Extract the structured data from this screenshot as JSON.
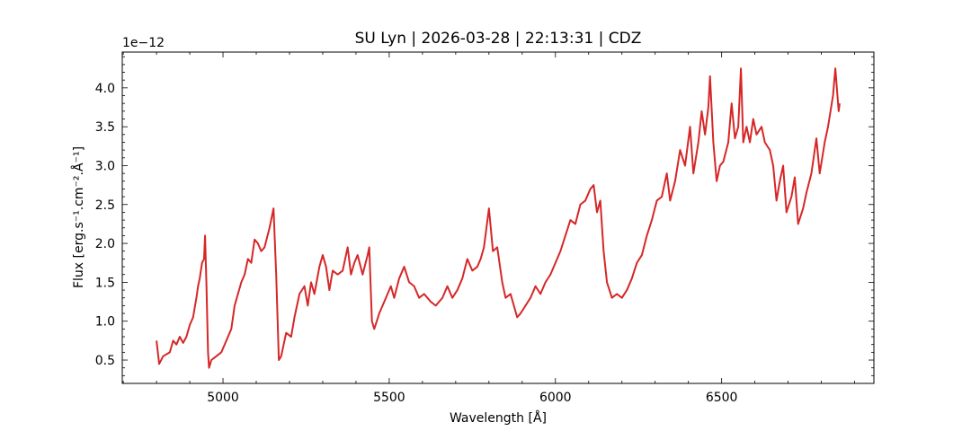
{
  "chart_data": {
    "type": "line",
    "title": "SU Lyn | 2026-03-28 | 22:13:31 | CDZ",
    "x_label": "Wavelength [Å]",
    "y_label": "Flux [erg.s⁻¹.cm⁻².Å⁻¹]",
    "y_offset_label": "1e−12",
    "xlim": [
      4697,
      6958
    ],
    "ylim": [
      0.2,
      4.46
    ],
    "xticks": [
      5000,
      5500,
      6000,
      6500
    ],
    "yticks": [
      0.5,
      {
        "value": 1.0,
        "label": "1.0"
      },
      1.5,
      {
        "value": 2.0,
        "label": "2.0"
      },
      2.5,
      {
        "value": 3.0,
        "label": "3.0"
      },
      3.5,
      {
        "value": 4.0,
        "label": "4.0"
      }
    ],
    "xminor": [
      4700,
      4800,
      4900,
      5100,
      5200,
      5300,
      5400,
      5600,
      5700,
      5800,
      5900,
      6100,
      6200,
      6300,
      6400,
      6600,
      6700,
      6800,
      6900
    ],
    "yminor": [
      0.3,
      0.4,
      0.6,
      0.7,
      0.8,
      0.9,
      1.1,
      1.2,
      1.3,
      1.4,
      1.6,
      1.7,
      1.8,
      1.9,
      2.1,
      2.2,
      2.3,
      2.4,
      2.6,
      2.7,
      2.8,
      2.9,
      3.1,
      3.2,
      3.3,
      3.4,
      3.6,
      3.7,
      3.8,
      3.9,
      4.1,
      4.2,
      4.3,
      4.4
    ],
    "grid": false,
    "series": [
      {
        "color": "#d62728",
        "x": [
          4800,
          4808,
          4820,
          4840,
          4850,
          4860,
          4870,
          4880,
          4890,
          4900,
          4910,
          4920,
          4925,
          4930,
          4937,
          4943,
          4946,
          4950,
          4955,
          4958,
          4965,
          4980,
          4995,
          5010,
          5025,
          5035,
          5045,
          5055,
          5065,
          5075,
          5085,
          5095,
          5105,
          5115,
          5125,
          5140,
          5152,
          5160,
          5168,
          5175,
          5190,
          5205,
          5215,
          5230,
          5245,
          5255,
          5265,
          5275,
          5290,
          5300,
          5310,
          5320,
          5330,
          5345,
          5360,
          5375,
          5385,
          5395,
          5405,
          5420,
          5435,
          5440,
          5448,
          5455,
          5470,
          5490,
          5505,
          5515,
          5530,
          5545,
          5560,
          5575,
          5590,
          5605,
          5625,
          5640,
          5660,
          5675,
          5690,
          5705,
          5720,
          5735,
          5750,
          5765,
          5775,
          5785,
          5800,
          5812,
          5825,
          5840,
          5850,
          5865,
          5875,
          5885,
          5895,
          5910,
          5925,
          5940,
          5955,
          5970,
          5985,
          6000,
          6015,
          6030,
          6045,
          6060,
          6075,
          6090,
          6105,
          6115,
          6125,
          6135,
          6145,
          6155,
          6170,
          6185,
          6200,
          6215,
          6230,
          6245,
          6260,
          6275,
          6290,
          6305,
          6320,
          6335,
          6345,
          6360,
          6375,
          6390,
          6405,
          6415,
          6430,
          6440,
          6450,
          6460,
          6465,
          6475,
          6485,
          6495,
          6505,
          6520,
          6530,
          6540,
          6550,
          6558,
          6565,
          6575,
          6585,
          6595,
          6605,
          6620,
          6630,
          6645,
          6655,
          6665,
          6675,
          6685,
          6695,
          6710,
          6720,
          6730,
          6745,
          6755,
          6770,
          6785,
          6795,
          6810,
          6820,
          6835,
          6842,
          6852,
          6855
        ],
        "values": [
          0.75,
          0.45,
          0.55,
          0.6,
          0.75,
          0.7,
          0.8,
          0.72,
          0.8,
          0.95,
          1.05,
          1.3,
          1.45,
          1.55,
          1.75,
          1.8,
          2.1,
          1.5,
          0.6,
          0.4,
          0.5,
          0.55,
          0.6,
          0.75,
          0.9,
          1.2,
          1.35,
          1.5,
          1.6,
          1.8,
          1.75,
          2.05,
          2.0,
          1.9,
          1.95,
          2.2,
          2.45,
          1.6,
          0.5,
          0.55,
          0.85,
          0.8,
          1.05,
          1.35,
          1.45,
          1.2,
          1.5,
          1.35,
          1.7,
          1.85,
          1.7,
          1.4,
          1.65,
          1.6,
          1.65,
          1.95,
          1.6,
          1.75,
          1.85,
          1.6,
          1.85,
          1.95,
          1.0,
          0.9,
          1.1,
          1.3,
          1.45,
          1.3,
          1.55,
          1.7,
          1.5,
          1.45,
          1.3,
          1.35,
          1.25,
          1.2,
          1.3,
          1.45,
          1.3,
          1.4,
          1.55,
          1.8,
          1.65,
          1.7,
          1.8,
          1.95,
          2.45,
          1.9,
          1.95,
          1.5,
          1.3,
          1.35,
          1.2,
          1.05,
          1.1,
          1.2,
          1.3,
          1.45,
          1.35,
          1.5,
          1.6,
          1.75,
          1.9,
          2.1,
          2.3,
          2.25,
          2.5,
          2.55,
          2.7,
          2.75,
          2.4,
          2.55,
          1.9,
          1.5,
          1.3,
          1.35,
          1.3,
          1.4,
          1.55,
          1.75,
          1.85,
          2.1,
          2.3,
          2.55,
          2.6,
          2.9,
          2.55,
          2.8,
          3.2,
          3.0,
          3.5,
          2.9,
          3.3,
          3.7,
          3.4,
          3.75,
          4.15,
          3.3,
          2.8,
          3.0,
          3.05,
          3.3,
          3.8,
          3.35,
          3.5,
          4.25,
          3.3,
          3.5,
          3.3,
          3.6,
          3.4,
          3.5,
          3.3,
          3.2,
          3.0,
          2.55,
          2.8,
          3.0,
          2.4,
          2.6,
          2.85,
          2.25,
          2.45,
          2.65,
          2.9,
          3.35,
          2.9,
          3.3,
          3.5,
          3.9,
          4.25,
          3.7,
          3.8
        ]
      }
    ]
  }
}
